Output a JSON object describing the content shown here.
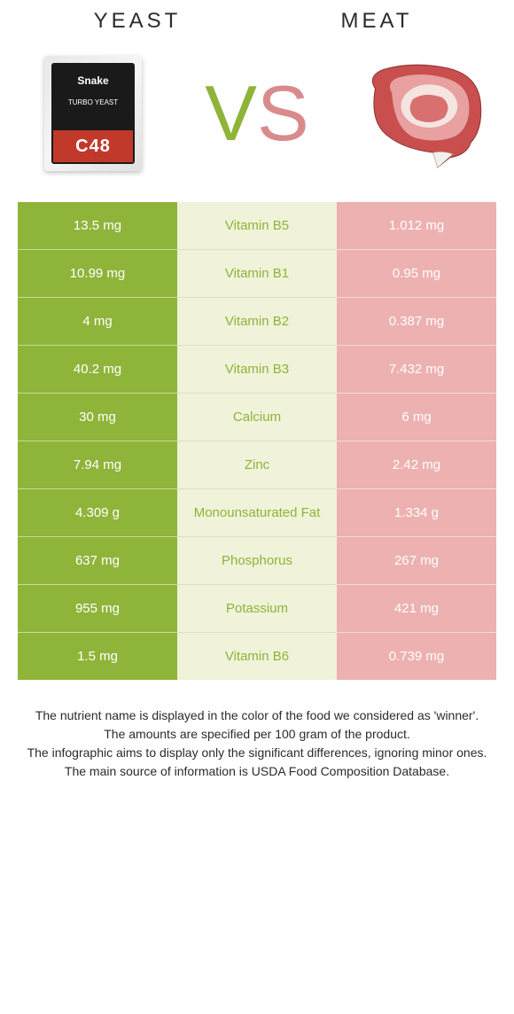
{
  "left_title": "Yeast",
  "right_title": "Meat",
  "vs_left": "V",
  "vs_right": "S",
  "colors": {
    "yeast_col": "#8fb43a",
    "mid_col": "#f0f2d9",
    "meat_col": "#edb1b1",
    "mid_text_winner_yeast": "#8fb43a",
    "mid_text_winner_meat": "#d98b8b",
    "vs_left": "#8fb43a",
    "vs_right": "#d98b8b"
  },
  "yeast_pack": {
    "brand": "Snake",
    "line": "TURBO YEAST",
    "code": "C48"
  },
  "rows": [
    {
      "left": "13.5 mg",
      "mid": "Vitamin B5",
      "right": "1.012 mg",
      "winner": "left"
    },
    {
      "left": "10.99 mg",
      "mid": "Vitamin B1",
      "right": "0.95 mg",
      "winner": "left"
    },
    {
      "left": "4 mg",
      "mid": "Vitamin B2",
      "right": "0.387 mg",
      "winner": "left"
    },
    {
      "left": "40.2 mg",
      "mid": "Vitamin B3",
      "right": "7.432 mg",
      "winner": "left"
    },
    {
      "left": "30 mg",
      "mid": "Calcium",
      "right": "6 mg",
      "winner": "left"
    },
    {
      "left": "7.94 mg",
      "mid": "Zinc",
      "right": "2.42 mg",
      "winner": "left"
    },
    {
      "left": "4.309 g",
      "mid": "Monounsaturated Fat",
      "right": "1.334 g",
      "winner": "left"
    },
    {
      "left": "637 mg",
      "mid": "Phosphorus",
      "right": "267 mg",
      "winner": "left"
    },
    {
      "left": "955 mg",
      "mid": "Potassium",
      "right": "421 mg",
      "winner": "left"
    },
    {
      "left": "1.5 mg",
      "mid": "Vitamin B6",
      "right": "0.739 mg",
      "winner": "left"
    }
  ],
  "footer": [
    "The nutrient name is displayed in the color of the food we considered as 'winner'.",
    "The amounts are specified per 100 gram of the product.",
    "The infographic aims to display only the significant differences, ignoring minor ones.",
    "The main source of information is USDA Food Composition Database."
  ]
}
